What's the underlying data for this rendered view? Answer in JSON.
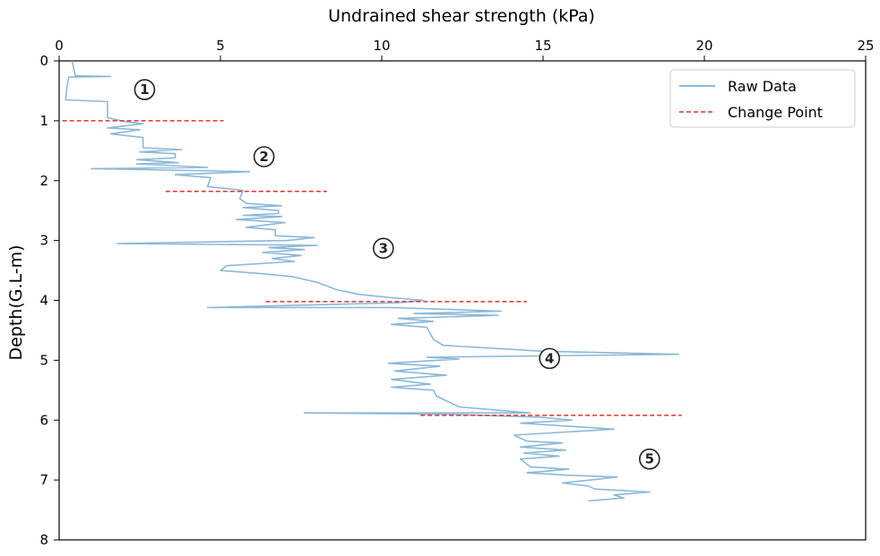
{
  "chart_data": {
    "type": "line",
    "xlabel": "Undrained shear strength (kPa)",
    "ylabel": "Depth(G.L-m)",
    "xlim": [
      0,
      25
    ],
    "ylim": [
      8,
      0
    ],
    "x_axis_position": "top",
    "y_inverted": true,
    "grid": false,
    "xticks": [
      "0",
      "5",
      "10",
      "15",
      "20",
      "25"
    ],
    "yticks": [
      "0",
      "1",
      "2",
      "3",
      "4",
      "5",
      "6",
      "7",
      "8"
    ],
    "legend": {
      "placement": "top-right",
      "entries": [
        "Raw Data",
        "Change Point"
      ]
    },
    "colors": {
      "raw": "#8cb8d8",
      "change": "#e03030"
    },
    "series": [
      {
        "name": "Raw Data",
        "points": [
          [
            0.4,
            0.0
          ],
          [
            0.45,
            0.12
          ],
          [
            0.5,
            0.25
          ],
          [
            1.6,
            0.26
          ],
          [
            0.3,
            0.27
          ],
          [
            0.25,
            0.4
          ],
          [
            0.2,
            0.65
          ],
          [
            1.5,
            0.68
          ],
          [
            1.5,
            0.95
          ],
          [
            2.1,
            1.02
          ],
          [
            2.6,
            1.05
          ],
          [
            1.5,
            1.12
          ],
          [
            2.5,
            1.15
          ],
          [
            1.6,
            1.22
          ],
          [
            2.6,
            1.28
          ],
          [
            2.6,
            1.45
          ],
          [
            3.8,
            1.48
          ],
          [
            2.5,
            1.52
          ],
          [
            3.6,
            1.55
          ],
          [
            3.6,
            1.62
          ],
          [
            2.4,
            1.65
          ],
          [
            3.7,
            1.7
          ],
          [
            2.4,
            1.72
          ],
          [
            4.6,
            1.78
          ],
          [
            1.0,
            1.8
          ],
          [
            5.9,
            1.85
          ],
          [
            3.6,
            1.9
          ],
          [
            4.7,
            1.95
          ],
          [
            4.6,
            2.1
          ],
          [
            5.7,
            2.16
          ],
          [
            5.6,
            2.3
          ],
          [
            5.8,
            2.38
          ],
          [
            6.9,
            2.42
          ],
          [
            5.7,
            2.45
          ],
          [
            6.8,
            2.5
          ],
          [
            6.8,
            2.55
          ],
          [
            5.7,
            2.58
          ],
          [
            6.9,
            2.6
          ],
          [
            5.5,
            2.65
          ],
          [
            7.0,
            2.7
          ],
          [
            5.8,
            2.78
          ],
          [
            6.7,
            2.82
          ],
          [
            6.7,
            2.92
          ],
          [
            7.9,
            2.95
          ],
          [
            7.1,
            3.0
          ],
          [
            1.8,
            3.05
          ],
          [
            8.0,
            3.08
          ],
          [
            6.5,
            3.12
          ],
          [
            7.6,
            3.15
          ],
          [
            6.3,
            3.2
          ],
          [
            7.5,
            3.25
          ],
          [
            6.6,
            3.3
          ],
          [
            7.3,
            3.35
          ],
          [
            5.2,
            3.42
          ],
          [
            5.0,
            3.5
          ],
          [
            6.2,
            3.55
          ],
          [
            7.2,
            3.6
          ],
          [
            8.0,
            3.7
          ],
          [
            8.6,
            3.82
          ],
          [
            9.3,
            3.9
          ],
          [
            10.2,
            3.95
          ],
          [
            11.3,
            4.0
          ],
          [
            10.5,
            4.04
          ],
          [
            9.0,
            4.06
          ],
          [
            4.6,
            4.12
          ],
          [
            10.3,
            4.12
          ],
          [
            13.7,
            4.18
          ],
          [
            11.0,
            4.22
          ],
          [
            13.6,
            4.25
          ],
          [
            10.5,
            4.3
          ],
          [
            11.6,
            4.35
          ],
          [
            10.3,
            4.4
          ],
          [
            11.4,
            4.45
          ],
          [
            11.6,
            4.65
          ],
          [
            11.9,
            4.75
          ],
          [
            15.0,
            4.85
          ],
          [
            19.2,
            4.9
          ],
          [
            11.4,
            4.95
          ],
          [
            12.4,
            4.98
          ],
          [
            10.2,
            5.05
          ],
          [
            11.8,
            5.1
          ],
          [
            10.4,
            5.18
          ],
          [
            12.0,
            5.25
          ],
          [
            10.3,
            5.32
          ],
          [
            11.5,
            5.4
          ],
          [
            10.3,
            5.45
          ],
          [
            11.6,
            5.5
          ],
          [
            11.7,
            5.6
          ],
          [
            12.4,
            5.78
          ],
          [
            14.6,
            5.88
          ],
          [
            7.6,
            5.88
          ],
          [
            12.0,
            5.9
          ],
          [
            14.9,
            5.95
          ],
          [
            15.9,
            6.0
          ],
          [
            14.3,
            6.05
          ],
          [
            17.2,
            6.15
          ],
          [
            14.1,
            6.25
          ],
          [
            14.5,
            6.35
          ],
          [
            15.6,
            6.38
          ],
          [
            14.3,
            6.45
          ],
          [
            15.7,
            6.5
          ],
          [
            14.4,
            6.55
          ],
          [
            15.5,
            6.6
          ],
          [
            14.3,
            6.65
          ],
          [
            14.6,
            6.78
          ],
          [
            15.8,
            6.82
          ],
          [
            14.5,
            6.88
          ],
          [
            15.8,
            6.92
          ],
          [
            17.3,
            6.95
          ],
          [
            15.6,
            7.05
          ],
          [
            16.4,
            7.1
          ],
          [
            16.6,
            7.15
          ],
          [
            18.3,
            7.2
          ],
          [
            17.2,
            7.25
          ],
          [
            17.5,
            7.3
          ],
          [
            16.4,
            7.35
          ]
        ]
      },
      {
        "name": "Change Point",
        "segments": [
          {
            "depth": 1.0,
            "x_start": 0.1,
            "x_end": 5.1
          },
          {
            "depth": 2.18,
            "x_start": 3.3,
            "x_end": 8.3
          },
          {
            "depth": 4.02,
            "x_start": 6.4,
            "x_end": 14.5
          },
          {
            "depth": 5.92,
            "x_start": 11.2,
            "x_end": 19.3
          }
        ]
      }
    ],
    "annotations": [
      {
        "text": "1",
        "x": 2.65,
        "depth": 0.48
      },
      {
        "text": "2",
        "x": 6.35,
        "depth": 1.6
      },
      {
        "text": "3",
        "x": 10.05,
        "depth": 3.13
      },
      {
        "text": "4",
        "x": 15.2,
        "depth": 4.97
      },
      {
        "text": "5",
        "x": 18.3,
        "depth": 6.65
      }
    ]
  }
}
